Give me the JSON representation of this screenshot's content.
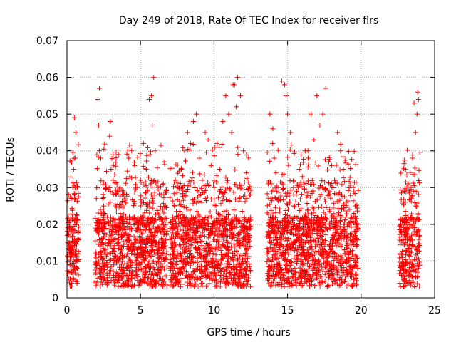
{
  "chart_data": {
    "type": "scatter",
    "title": "Day 249 of 2018, Rate Of TEC Index for receiver flrs",
    "xlabel": "GPS time / hours",
    "ylabel": "ROTI / TECUs",
    "xlim": [
      0,
      25
    ],
    "ylim": [
      0,
      0.07
    ],
    "x_ticks": [
      0,
      5,
      10,
      15,
      20,
      25
    ],
    "y_ticks": [
      0,
      0.01,
      0.02,
      0.03,
      0.04,
      0.05,
      0.06,
      0.07
    ],
    "x_tick_labels": [
      "0",
      "5",
      "10",
      "15",
      "20",
      "25"
    ],
    "y_tick_labels": [
      "0",
      "0.01",
      "0.02",
      "0.03",
      "0.04",
      "0.05",
      "0.06",
      "0.07"
    ],
    "grid": true,
    "marker": "+",
    "color": "#ff0000",
    "segments": [
      {
        "x_start": 0.0,
        "x_end": 0.8
      },
      {
        "x_start": 1.9,
        "x_end": 6.8
      },
      {
        "x_start": 7.0,
        "x_end": 12.5
      },
      {
        "x_start": 13.6,
        "x_end": 19.8
      },
      {
        "x_start": 22.6,
        "x_end": 24.0
      }
    ],
    "points": [
      [
        0.1,
        0.015
      ],
      [
        0.15,
        0.021
      ],
      [
        0.2,
        0.009
      ],
      [
        0.25,
        0.018
      ],
      [
        0.3,
        0.012
      ],
      [
        0.35,
        0.022
      ],
      [
        0.4,
        0.03
      ],
      [
        0.45,
        0.035
      ],
      [
        0.5,
        0.049
      ],
      [
        0.55,
        0.038
      ],
      [
        0.6,
        0.045
      ],
      [
        0.65,
        0.02
      ],
      [
        0.7,
        0.008
      ],
      [
        0.75,
        0.012
      ],
      [
        0.3,
        0.007
      ],
      [
        0.4,
        0.005
      ],
      [
        0.5,
        0.028
      ],
      [
        0.55,
        0.03
      ],
      [
        2.1,
        0.054
      ],
      [
        2.2,
        0.057
      ],
      [
        2.15,
        0.047
      ],
      [
        2.2,
        0.04
      ],
      [
        2.3,
        0.038
      ],
      [
        2.0,
        0.027
      ],
      [
        2.2,
        0.02
      ],
      [
        2.4,
        0.015
      ],
      [
        2.5,
        0.025
      ],
      [
        2.6,
        0.02
      ],
      [
        2.8,
        0.03
      ],
      [
        2.9,
        0.044
      ],
      [
        2.95,
        0.048
      ],
      [
        3.0,
        0.035
      ],
      [
        3.1,
        0.02
      ],
      [
        3.3,
        0.025
      ],
      [
        3.5,
        0.039
      ],
      [
        3.6,
        0.03
      ],
      [
        3.8,
        0.025
      ],
      [
        4.0,
        0.022
      ],
      [
        4.2,
        0.038
      ],
      [
        4.4,
        0.04
      ],
      [
        4.6,
        0.036
      ],
      [
        4.8,
        0.03
      ],
      [
        5.0,
        0.032
      ],
      [
        5.2,
        0.042
      ],
      [
        5.4,
        0.035
      ],
      [
        5.6,
        0.054
      ],
      [
        5.75,
        0.055
      ],
      [
        5.9,
        0.06
      ],
      [
        5.8,
        0.047
      ],
      [
        6.0,
        0.04
      ],
      [
        6.2,
        0.03
      ],
      [
        6.4,
        0.028
      ],
      [
        6.6,
        0.037
      ],
      [
        6.7,
        0.025
      ],
      [
        2.3,
        0.008
      ],
      [
        2.6,
        0.012
      ],
      [
        2.9,
        0.006
      ],
      [
        3.2,
        0.01
      ],
      [
        3.5,
        0.015
      ],
      [
        3.8,
        0.007
      ],
      [
        4.1,
        0.012
      ],
      [
        4.4,
        0.006
      ],
      [
        4.7,
        0.01
      ],
      [
        5.0,
        0.014
      ],
      [
        5.3,
        0.008
      ],
      [
        5.6,
        0.012
      ],
      [
        5.9,
        0.006
      ],
      [
        6.2,
        0.01
      ],
      [
        6.5,
        0.005
      ],
      [
        2.4,
        0.018
      ],
      [
        3.0,
        0.017
      ],
      [
        3.6,
        0.02
      ],
      [
        4.2,
        0.016
      ],
      [
        4.8,
        0.018
      ],
      [
        5.4,
        0.02
      ],
      [
        6.0,
        0.017
      ],
      [
        6.6,
        0.015
      ],
      [
        7.2,
        0.02
      ],
      [
        7.5,
        0.03
      ],
      [
        7.8,
        0.035
      ],
      [
        8.0,
        0.04
      ],
      [
        8.2,
        0.045
      ],
      [
        8.4,
        0.042
      ],
      [
        8.6,
        0.048
      ],
      [
        8.8,
        0.05
      ],
      [
        9.0,
        0.038
      ],
      [
        9.2,
        0.032
      ],
      [
        9.4,
        0.045
      ],
      [
        9.6,
        0.043
      ],
      [
        9.8,
        0.036
      ],
      [
        10.0,
        0.03
      ],
      [
        10.2,
        0.042
      ],
      [
        10.4,
        0.035
      ],
      [
        10.6,
        0.048
      ],
      [
        10.8,
        0.055
      ],
      [
        11.0,
        0.05
      ],
      [
        11.2,
        0.045
      ],
      [
        11.4,
        0.058
      ],
      [
        11.6,
        0.06
      ],
      [
        11.8,
        0.055
      ],
      [
        12.0,
        0.04
      ],
      [
        12.2,
        0.034
      ],
      [
        11.5,
        0.052
      ],
      [
        11.3,
        0.058
      ],
      [
        12.1,
        0.028
      ],
      [
        7.3,
        0.008
      ],
      [
        7.7,
        0.012
      ],
      [
        8.1,
        0.006
      ],
      [
        8.5,
        0.01
      ],
      [
        8.9,
        0.015
      ],
      [
        9.3,
        0.007
      ],
      [
        9.7,
        0.012
      ],
      [
        10.1,
        0.006
      ],
      [
        10.5,
        0.01
      ],
      [
        10.9,
        0.014
      ],
      [
        11.3,
        0.008
      ],
      [
        11.7,
        0.012
      ],
      [
        12.1,
        0.006
      ],
      [
        7.5,
        0.018
      ],
      [
        8.3,
        0.02
      ],
      [
        9.1,
        0.017
      ],
      [
        9.9,
        0.02
      ],
      [
        10.7,
        0.018
      ],
      [
        11.5,
        0.022
      ],
      [
        12.3,
        0.015
      ],
      [
        13.8,
        0.05
      ],
      [
        14.0,
        0.046
      ],
      [
        14.1,
        0.038
      ],
      [
        14.2,
        0.034
      ],
      [
        14.4,
        0.03
      ],
      [
        14.6,
        0.059
      ],
      [
        14.8,
        0.058
      ],
      [
        14.9,
        0.055
      ],
      [
        15.0,
        0.05
      ],
      [
        15.2,
        0.045
      ],
      [
        15.4,
        0.03
      ],
      [
        15.6,
        0.028
      ],
      [
        15.8,
        0.035
      ],
      [
        16.0,
        0.033
      ],
      [
        16.2,
        0.04
      ],
      [
        16.4,
        0.038
      ],
      [
        16.6,
        0.05
      ],
      [
        16.8,
        0.043
      ],
      [
        17.0,
        0.055
      ],
      [
        17.2,
        0.047
      ],
      [
        17.4,
        0.05
      ],
      [
        17.6,
        0.057
      ],
      [
        17.8,
        0.037
      ],
      [
        18.0,
        0.036
      ],
      [
        18.2,
        0.032
      ],
      [
        18.4,
        0.045
      ],
      [
        18.6,
        0.04
      ],
      [
        18.8,
        0.035
      ],
      [
        19.0,
        0.026
      ],
      [
        19.3,
        0.022
      ],
      [
        19.6,
        0.025
      ],
      [
        13.9,
        0.008
      ],
      [
        14.3,
        0.012
      ],
      [
        14.7,
        0.006
      ],
      [
        15.1,
        0.01
      ],
      [
        15.5,
        0.015
      ],
      [
        15.9,
        0.007
      ],
      [
        16.3,
        0.012
      ],
      [
        16.7,
        0.006
      ],
      [
        17.1,
        0.01
      ],
      [
        17.5,
        0.014
      ],
      [
        17.9,
        0.008
      ],
      [
        18.3,
        0.012
      ],
      [
        18.7,
        0.006
      ],
      [
        19.1,
        0.01
      ],
      [
        19.5,
        0.005
      ],
      [
        14.0,
        0.018
      ],
      [
        14.8,
        0.02
      ],
      [
        15.6,
        0.017
      ],
      [
        16.4,
        0.02
      ],
      [
        17.2,
        0.018
      ],
      [
        18.0,
        0.022
      ],
      [
        18.8,
        0.016
      ],
      [
        19.6,
        0.018
      ],
      [
        22.7,
        0.018
      ],
      [
        22.8,
        0.011
      ],
      [
        22.9,
        0.005
      ],
      [
        23.0,
        0.009
      ],
      [
        23.0,
        0.015
      ],
      [
        22.9,
        0.003
      ],
      [
        23.2,
        0.022
      ],
      [
        23.4,
        0.03
      ],
      [
        23.5,
        0.038
      ],
      [
        23.6,
        0.053
      ],
      [
        23.7,
        0.045
      ],
      [
        23.8,
        0.05
      ],
      [
        23.85,
        0.056
      ],
      [
        23.9,
        0.054
      ],
      [
        23.6,
        0.018
      ],
      [
        23.7,
        0.025
      ],
      [
        23.8,
        0.013
      ],
      [
        23.9,
        0.008
      ],
      [
        23.5,
        0.01
      ],
      [
        23.4,
        0.006
      ]
    ]
  }
}
